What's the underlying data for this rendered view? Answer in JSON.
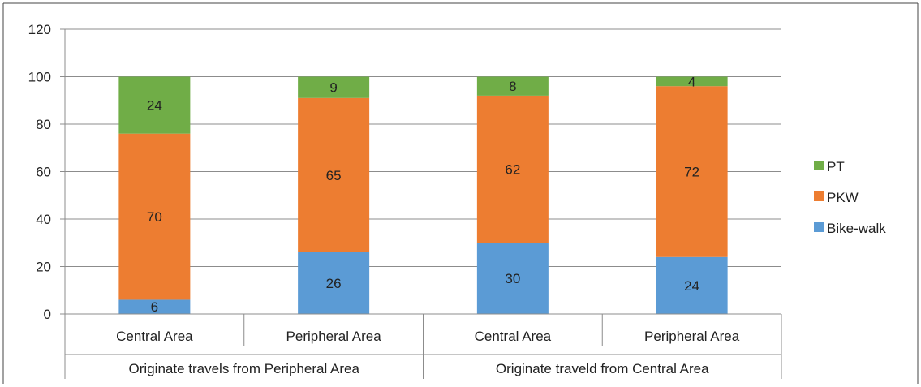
{
  "chart_data": {
    "type": "bar",
    "stacked": true,
    "categories": [
      "Central Area",
      "Peripheral Area",
      "Central Area",
      "Peripheral Area"
    ],
    "groups": [
      {
        "label": "Originate travels from Peripheral Area",
        "categories": [
          "Central Area",
          "Peripheral Area"
        ]
      },
      {
        "label": "Originate traveld from Central Area",
        "categories": [
          "Central Area",
          "Peripheral Area"
        ]
      }
    ],
    "series": [
      {
        "name": "Bike-walk",
        "color": "#5b9bd5",
        "values": [
          6,
          26,
          30,
          24
        ]
      },
      {
        "name": "PKW",
        "color": "#ed7d31",
        "values": [
          70,
          65,
          62,
          72
        ]
      },
      {
        "name": "PT",
        "color": "#70ad47",
        "values": [
          24,
          9,
          8,
          4
        ]
      }
    ],
    "ylim": [
      0,
      120
    ],
    "yticks": [
      0,
      20,
      40,
      60,
      80,
      100,
      120
    ],
    "grid": true,
    "legend_position": "right",
    "legend_order": [
      "PT",
      "PKW",
      "Bike-walk"
    ]
  }
}
